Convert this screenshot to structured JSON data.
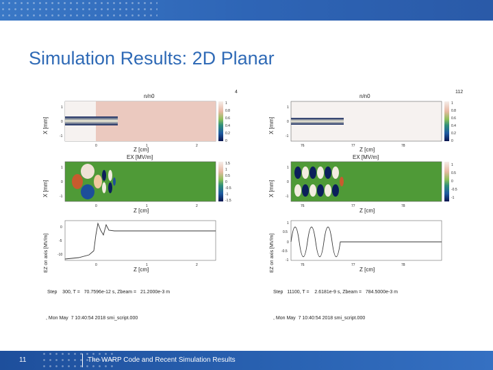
{
  "slide": {
    "title": "Simulation Results: 2D Planar",
    "page_number": "11",
    "footer": "The WARP Code and Recent Simulation Results"
  },
  "left_panel": {
    "corner_label": "4",
    "density": {
      "title": "n/n0",
      "xlabel": "Z [cm]",
      "ylabel": "X [mm]",
      "xticks": [
        "0",
        "1",
        "2"
      ],
      "yticks": [
        "1",
        "0",
        "-1"
      ],
      "cbar_ticks": [
        "1",
        "0.8",
        "0.6",
        "0.4",
        "0.2",
        "0"
      ]
    },
    "field": {
      "title": "EX [MV/m]",
      "xlabel": "Z [cm]",
      "ylabel": "X [mm]",
      "xticks": [
        "0",
        "1",
        "2"
      ],
      "yticks": [
        "1",
        "0",
        "-1"
      ],
      "cbar_ticks": [
        "1.5",
        "1",
        "0.5",
        "0",
        "-0.5",
        "-1",
        "-1.5"
      ]
    },
    "lineout": {
      "xlabel": "Z [cm]",
      "ylabel": "EZ on axis [MV/m]",
      "xticks": [
        "0",
        "1",
        "2"
      ],
      "yticks": [
        "0",
        "-5",
        "-10"
      ]
    },
    "step_text": "Step    300, T =   70.7596e-12 s, Zbeam =   21.2000e-3 m",
    "date_text": ", Mon May  7 10:40:54 2018 smi_script.000"
  },
  "right_panel": {
    "corner_label": "112",
    "density": {
      "title": "n/n0",
      "xlabel": "Z [cm]",
      "ylabel": "X [mm]",
      "xticks": [
        "76",
        "77",
        "78"
      ],
      "yticks": [
        "1",
        "0",
        "-1"
      ],
      "cbar_ticks": [
        "1",
        "0.8",
        "0.6",
        "0.4",
        "0.2",
        "0"
      ]
    },
    "field": {
      "title": "EX [MV/m]",
      "xlabel": "Z [cm]",
      "ylabel": "X [mm]",
      "xticks": [
        "76",
        "77",
        "78"
      ],
      "yticks": [
        "1",
        "0",
        "-1"
      ],
      "cbar_ticks": [
        "1",
        "0.5",
        "0",
        "-0.5",
        "-1"
      ]
    },
    "lineout": {
      "xlabel": "Z [cm]",
      "ylabel": "EZ on axis [MV/m]",
      "xticks": [
        "76",
        "77",
        "78"
      ],
      "yticks": [
        "1",
        "0.5",
        "0",
        "-0.5",
        "-1"
      ]
    },
    "step_text": "Step   11100, T =    2.6181e-9 s, Zbeam =   784.5000e-3 m",
    "date_text": ", Mon May  7 10:40:54 2018 smi_script.000"
  },
  "colors": {
    "band": "#2e65b6",
    "title": "#2f6ab6",
    "density_bg": "#ebc9bf",
    "field_bg": "#4f9a37"
  }
}
